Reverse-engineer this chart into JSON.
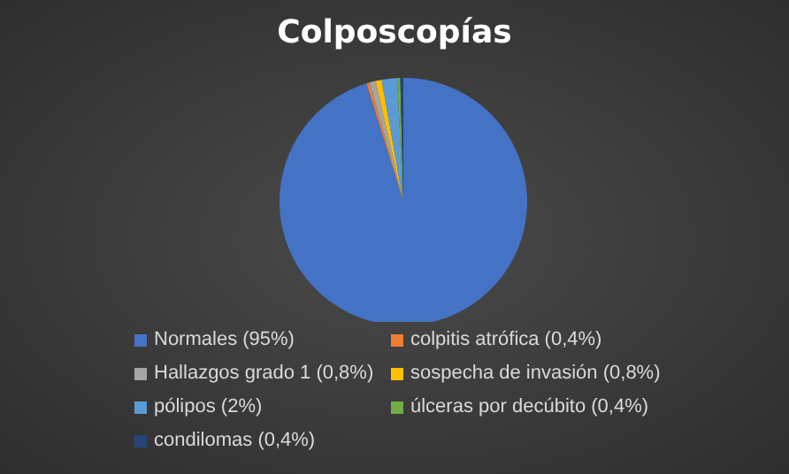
{
  "chart_data": {
    "type": "pie",
    "title": "Colposcopías",
    "categories": [
      "Normales (95%)",
      "colpitis atrófica (0,4%)",
      "Hallazgos grado 1 (0,8%)",
      "sospecha de invasión (0,8%)",
      "pólipos (2%)",
      "úlceras por decúbito (0,4%)",
      "condilomas (0,4%)"
    ],
    "values": [
      95,
      0.4,
      0.8,
      0.8,
      2,
      0.4,
      0.4
    ],
    "colors": [
      "#4472c4",
      "#ed7d31",
      "#a5a5a5",
      "#ffc000",
      "#5b9bd5",
      "#70ad47",
      "#264478"
    ],
    "legend": "bottom"
  }
}
